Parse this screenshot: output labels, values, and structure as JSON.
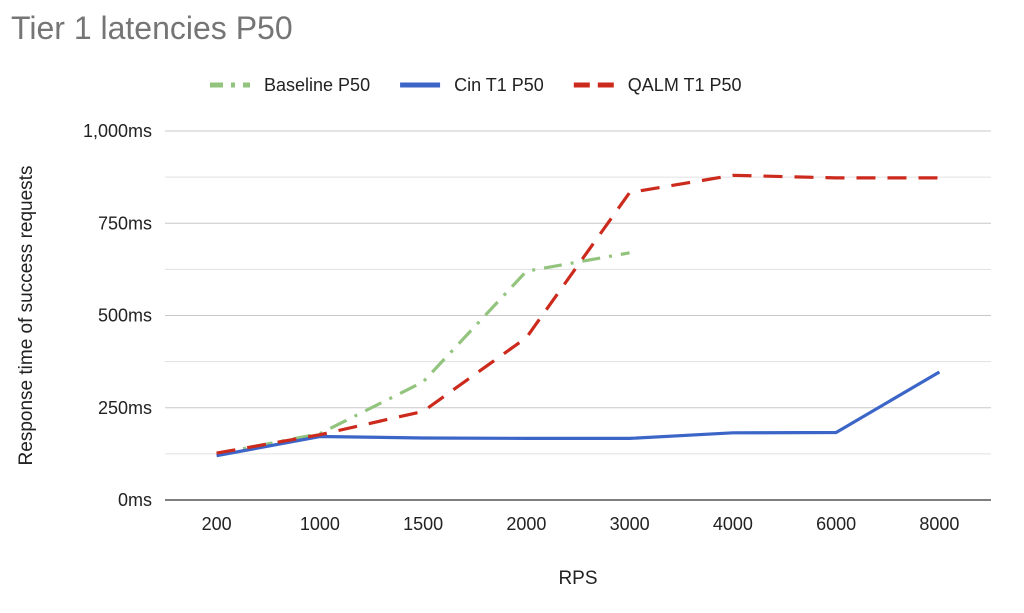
{
  "chart_data": {
    "type": "line",
    "title": "Tier 1 latencies P50",
    "xlabel": "RPS",
    "ylabel": "Response time of success requests",
    "categories": [
      "200",
      "1000",
      "1500",
      "2000",
      "3000",
      "4000",
      "6000",
      "8000"
    ],
    "yticks": [
      "0ms",
      "250ms",
      "500ms",
      "750ms",
      "1,000ms"
    ],
    "ylim": [
      0,
      1000
    ],
    "grid": true,
    "legend_position": "top",
    "series": [
      {
        "name": "Baseline P50",
        "color": "#93c47d",
        "dash": "dash-dot",
        "values": [
          125,
          180,
          320,
          620,
          670,
          null,
          null,
          null
        ]
      },
      {
        "name": "Cin T1 P50",
        "color": "#3c65c8",
        "dash": "solid",
        "values": [
          120,
          172,
          168,
          167,
          167,
          182,
          183,
          347
        ]
      },
      {
        "name": "QALM T1 P50",
        "color": "#cc2a1d",
        "dash": "dashed",
        "values": [
          127,
          177,
          240,
          440,
          833,
          880,
          873,
          873
        ]
      }
    ]
  }
}
